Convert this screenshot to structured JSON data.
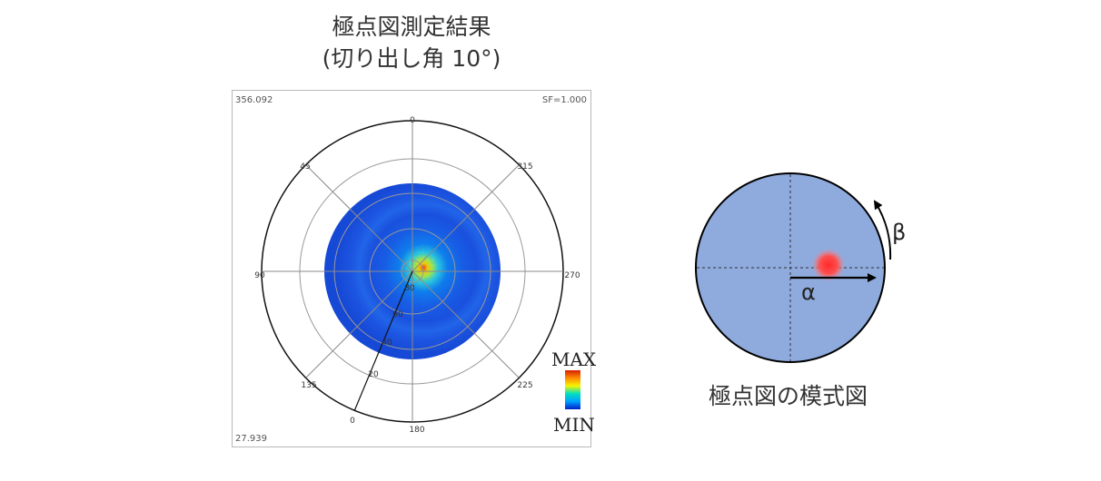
{
  "title": {
    "line1": "極点図測定結果",
    "line2": "(切り出し角 10°)"
  },
  "pole_figure": {
    "corner_top_left": "356.092",
    "corner_top_right": "SF=1.000",
    "corner_bottom_left": "27.939",
    "azimuth_labels": [
      "0",
      "45",
      "90",
      "135",
      "180",
      "225",
      "270",
      "315"
    ],
    "tilt_labels": [
      "80",
      "60",
      "40",
      "20",
      "0"
    ],
    "colorbar_max": "MAX",
    "colorbar_min": "MIN",
    "colors": {
      "background_min": "#1f4fe0",
      "max": "#ff3a00",
      "colorbar": [
        "#d62000",
        "#ff8c00",
        "#f5f500",
        "#00e0c0",
        "#00a0ff",
        "#0020c8"
      ]
    }
  },
  "schematic": {
    "alpha_label": "α",
    "beta_label": "β",
    "caption": "極点図の模式図",
    "colors": {
      "disk": "#8faadc",
      "spot": "#ff3b3b"
    }
  }
}
